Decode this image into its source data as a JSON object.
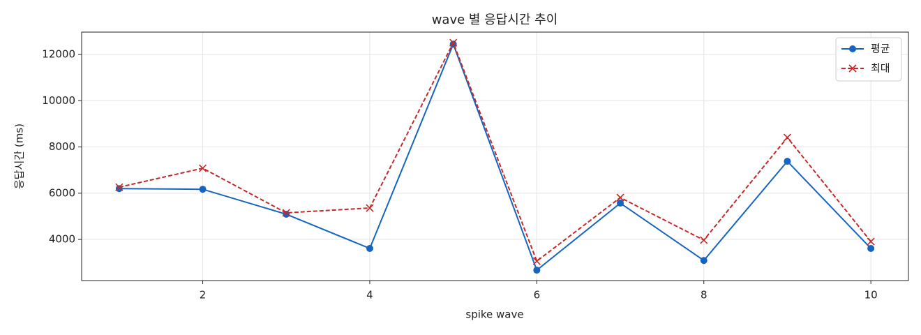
{
  "chart_data": {
    "type": "line",
    "title": "wave 별 응답시간 추이",
    "x_label": "spike wave",
    "y_label": "응답시간 (ms)",
    "x": [
      1,
      2,
      3,
      4,
      5,
      6,
      7,
      8,
      9,
      10
    ],
    "series": [
      {
        "name": "평균",
        "color": "#1565c0",
        "style": "solid",
        "marker": "circle",
        "values": [
          6200,
          6170,
          5090,
          3610,
          12450,
          2670,
          5570,
          3090,
          7380,
          3610
        ]
      },
      {
        "name": "최대",
        "color": "#c62828",
        "style": "dashed",
        "marker": "x",
        "values": [
          6260,
          7080,
          5150,
          5360,
          12510,
          3060,
          5810,
          3970,
          8410,
          3910
        ]
      }
    ],
    "xlim": [
      0.55,
      10.45
    ],
    "xticks": [
      2,
      4,
      6,
      8,
      10
    ],
    "ylim": [
      2220,
      12970
    ],
    "yticks": [
      4000,
      6000,
      8000,
      10000,
      12000
    ],
    "grid": true,
    "legend": "upper right"
  }
}
